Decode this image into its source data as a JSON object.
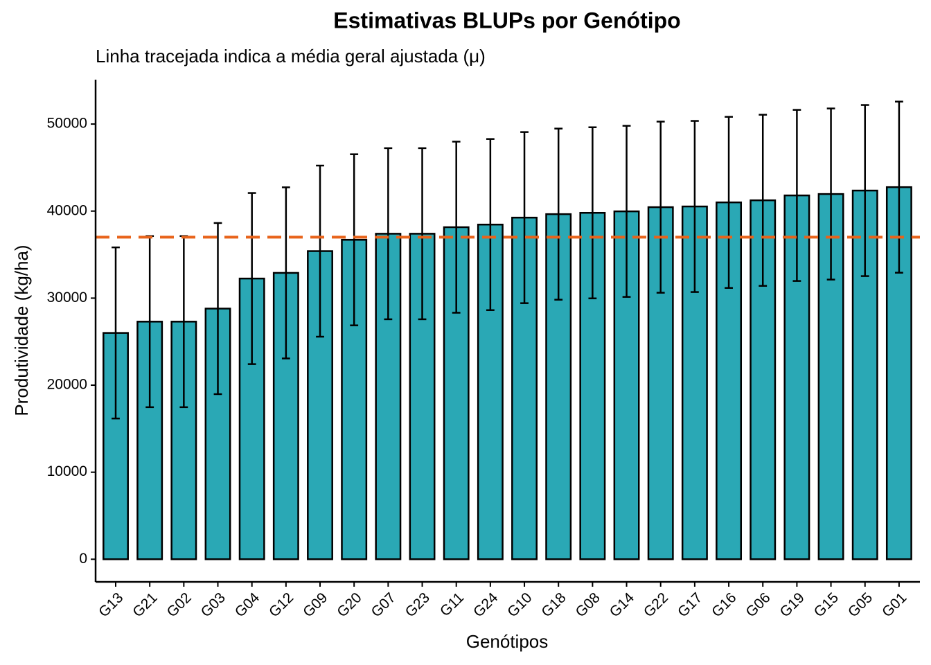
{
  "chart_data": {
    "type": "bar",
    "title": "Estimativas BLUPs por Genótipo",
    "subtitle": "Linha tracejada indica a média geral ajustada (μ)",
    "x_label": "Genótipos",
    "y_label": "Produtividade (kg/ha)",
    "categories": [
      "G13",
      "G21",
      "G02",
      "G03",
      "G04",
      "G12",
      "G09",
      "G20",
      "G07",
      "G23",
      "G11",
      "G24",
      "G10",
      "G18",
      "G08",
      "G14",
      "G22",
      "G17",
      "G16",
      "G06",
      "G19",
      "G15",
      "G05",
      "G01"
    ],
    "values": [
      26000,
      27300,
      27300,
      28800,
      32250,
      32900,
      35400,
      36700,
      37400,
      37400,
      38150,
      38450,
      39250,
      39650,
      39800,
      39970,
      40450,
      40530,
      41000,
      41240,
      41800,
      41960,
      42360,
      42750
    ],
    "errors": [
      9830,
      9830,
      9830,
      9830,
      9830,
      9830,
      9830,
      9830,
      9830,
      9830,
      9830,
      9830,
      9830,
      9830,
      9830,
      9830,
      9830,
      9830,
      9830,
      9830,
      9830,
      9830,
      9830,
      9830
    ],
    "color": "#2aa8b5",
    "hline": 37000,
    "hline_color": "#e8631a",
    "ylim": [
      -2600,
      55100
    ],
    "yticks": [
      0,
      10000,
      20000,
      30000,
      40000,
      50000
    ]
  }
}
